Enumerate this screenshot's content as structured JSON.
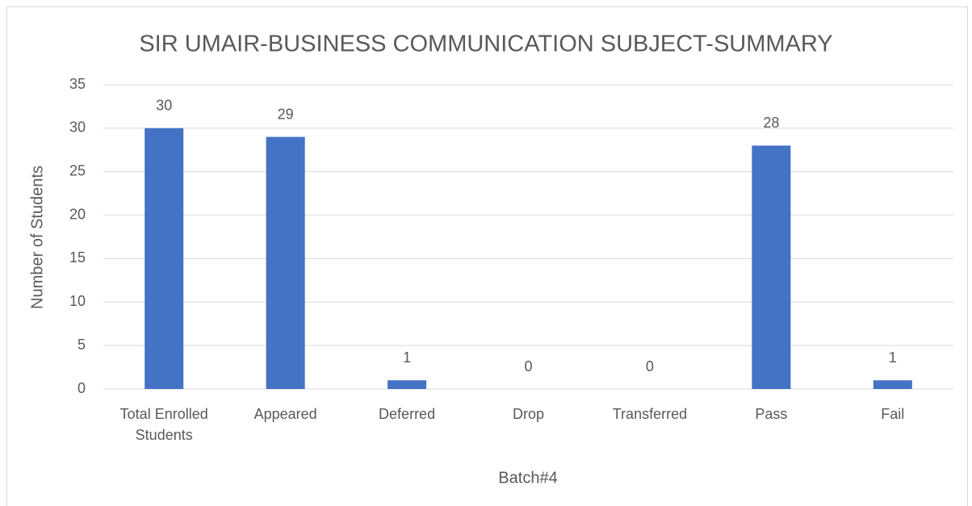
{
  "chart_data": {
    "type": "bar",
    "title": "SIR UMAIR-BUSINESS COMMUNICATION SUBJECT-SUMMARY",
    "x_label": "Batch#4",
    "y_label": "Number of Students",
    "categories": [
      "Total Enrolled Students",
      "Appeared",
      "Deferred",
      "Drop",
      "Transferred",
      "Pass",
      "Fail"
    ],
    "values": [
      30,
      29,
      1,
      0,
      0,
      28,
      1
    ],
    "color": "#4472c4",
    "ylim": [
      0,
      35
    ],
    "yticks": [
      0,
      5,
      10,
      15,
      20,
      25,
      30,
      35
    ],
    "grid": true
  }
}
